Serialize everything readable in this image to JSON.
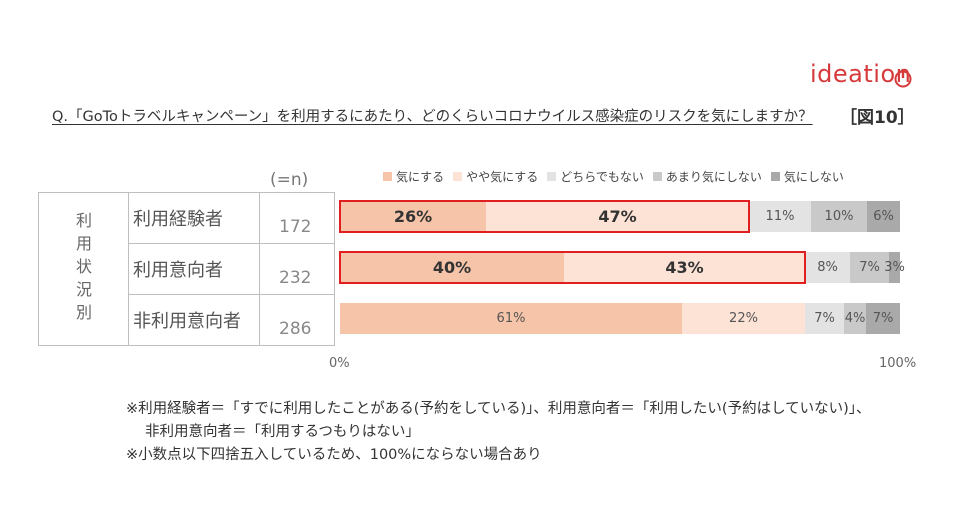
{
  "brand": {
    "name": "ideation"
  },
  "question": "Q.「GoToトラベルキャンペーン」を利用するにあたり、どのくらいコロナウイルス感染症のリスクを気にしますか？",
  "figure_label": "［図10］",
  "n_header": "(=n)",
  "group_label": "利用状況別",
  "axis": {
    "min_label": "0%",
    "max_label": "100%"
  },
  "colors": {
    "c1": "#f6c4a8",
    "c2": "#fde3d6",
    "c3": "#e3e3e3",
    "c4": "#c9c9c9",
    "c5": "#a9a9a9",
    "highlight": "#e02020",
    "brand": "#d63a3a"
  },
  "chart_data": {
    "type": "bar",
    "orientation": "horizontal-stacked-100",
    "title": "",
    "xlim": [
      0,
      100
    ],
    "categories": [
      "利用経験者",
      "利用意向者",
      "非利用意向者"
    ],
    "n": [
      172,
      232,
      286
    ],
    "series": [
      {
        "name": "気にする",
        "values": [
          26,
          40,
          61
        ],
        "labels": [
          "26%",
          "40%",
          "61%"
        ]
      },
      {
        "name": "やや気にする",
        "values": [
          47,
          43,
          22
        ],
        "labels": [
          "47%",
          "43%",
          "22%"
        ]
      },
      {
        "name": "どちらでもない",
        "values": [
          11,
          8,
          7
        ],
        "labels": [
          "11%",
          "8%",
          "7%"
        ]
      },
      {
        "name": "あまり気にしない",
        "values": [
          10,
          7,
          4
        ],
        "labels": [
          "10%",
          "7%",
          "4%"
        ]
      },
      {
        "name": "気にしない",
        "values": [
          6,
          3,
          7
        ],
        "labels": [
          "6%",
          "3%",
          "7%"
        ]
      }
    ],
    "highlighted_rows": [
      0,
      1
    ],
    "legend_position": "top"
  },
  "notes": [
    "※利用経験者＝「すでに利用したことがある(予約をしている)」、利用意向者＝「利用したい(予約はしていない)」、",
    "非利用意向者＝「利用するつもりはない」",
    "※小数点以下四捨五入しているため、100%にならない場合あり"
  ]
}
